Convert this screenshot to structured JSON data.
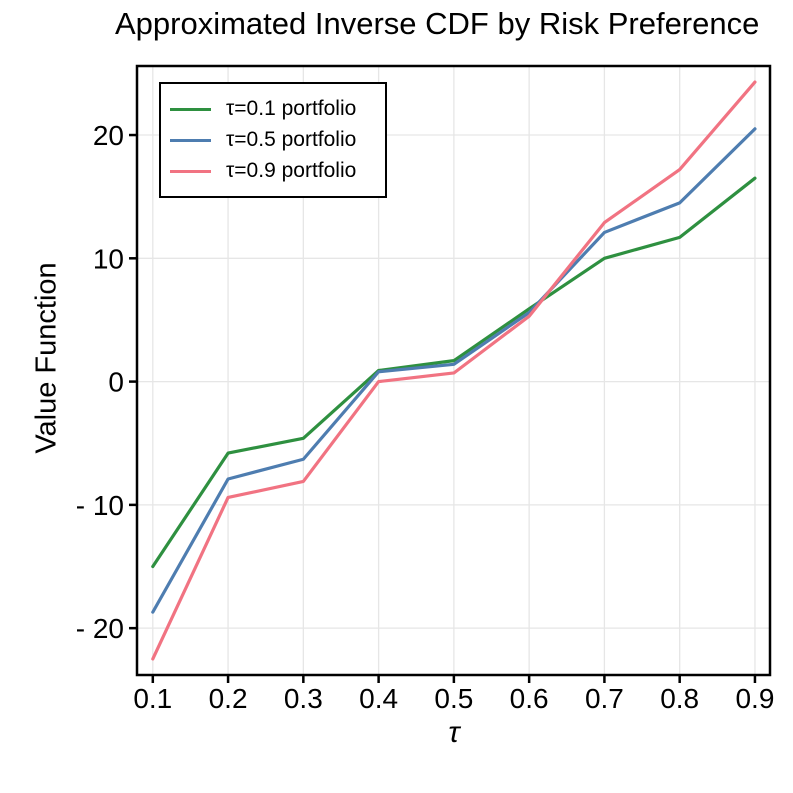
{
  "chart_data": {
    "type": "line",
    "title": "Approximated Inverse CDF by Risk Preference",
    "xlabel": "τ",
    "ylabel": "Value Function",
    "x": [
      0.1,
      0.2,
      0.3,
      0.4,
      0.5,
      0.6,
      0.7,
      0.8,
      0.9
    ],
    "series": [
      {
        "name": "τ=0.1 portfolio",
        "color": "#2e9040",
        "values": [
          -15.0,
          -5.8,
          -4.6,
          0.9,
          1.7,
          5.9,
          10.0,
          11.7,
          16.5
        ]
      },
      {
        "name": "τ=0.5 portfolio",
        "color": "#4e7db0",
        "values": [
          -18.7,
          -7.9,
          -6.3,
          0.8,
          1.4,
          5.6,
          12.1,
          14.5,
          20.5
        ]
      },
      {
        "name": "τ=0.9 portfolio",
        "color": "#f17382",
        "values": [
          -22.5,
          -9.4,
          -8.1,
          0.0,
          0.7,
          5.3,
          12.9,
          17.2,
          24.3
        ]
      }
    ],
    "xlim": [
      0.079,
      0.92
    ],
    "ylim": [
      -23.8,
      25.6
    ],
    "xticks": [
      0.1,
      0.2,
      0.3,
      0.4,
      0.5,
      0.6,
      0.7,
      0.8,
      0.9
    ],
    "xtick_labels": [
      "0.1",
      "0.2",
      "0.3",
      "0.4",
      "0.5",
      "0.6",
      "0.7",
      "0.8",
      "0.9"
    ],
    "yticks": [
      20,
      10,
      0,
      -10,
      -20
    ],
    "ytick_labels": [
      "20",
      "10",
      "0",
      "- 10",
      "- 20"
    ],
    "grid": true,
    "legend_position": "top-left"
  },
  "colors": {
    "grid": "#e6e6e6",
    "axis_box": "#000000",
    "tick": "#000000",
    "background": "#ffffff",
    "text": "#000000"
  }
}
